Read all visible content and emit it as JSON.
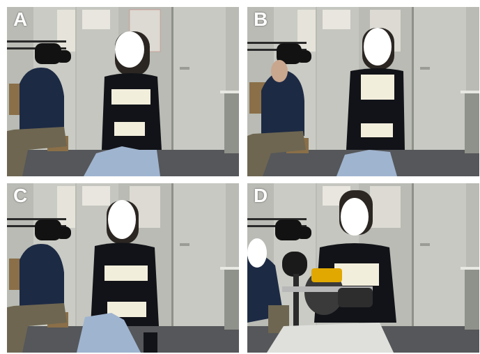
{
  "figure": {
    "panels": [
      {
        "id": "a",
        "label": "A",
        "scene": "seated-subject-relaxed-with-observer"
      },
      {
        "id": "b",
        "label": "B",
        "scene": "seated-subject-upright-observer-hand-on-face"
      },
      {
        "id": "c",
        "label": "C",
        "scene": "seated-subject-leaning-with-observer"
      },
      {
        "id": "d",
        "label": "D",
        "scene": "subject-with-ergometer-device"
      }
    ],
    "colors": {
      "wall": "#b9bbb4",
      "door": "#c7c9c2",
      "floor": "#55575a",
      "clothing": "#111318",
      "sensor_band": "#f2eedc",
      "jeans": "#9fb4cf",
      "face_mask": "#ffffff",
      "observer_sweater": "#1d2a44",
      "device_yellow": "#e0a800"
    }
  }
}
